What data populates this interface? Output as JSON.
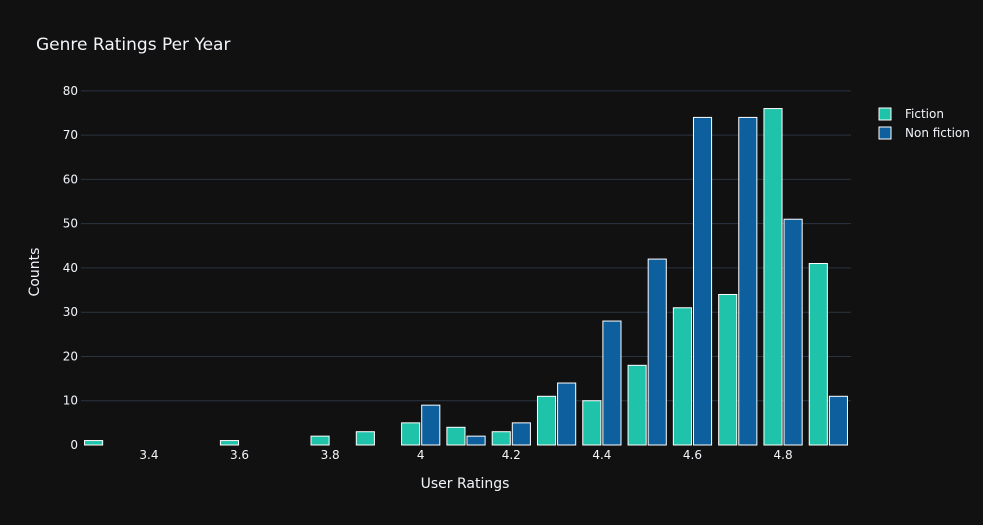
{
  "chart_data": {
    "type": "bar",
    "title": "Genre Ratings Per Year",
    "xlabel": "User Ratings",
    "ylabel": "Counts",
    "x": [
      3.3,
      3.6,
      3.8,
      3.9,
      4.0,
      4.1,
      4.2,
      4.3,
      4.4,
      4.5,
      4.6,
      4.7,
      4.8,
      4.9
    ],
    "series": [
      {
        "name": "Fiction",
        "color": "#1fc3aa",
        "values": [
          1,
          1,
          2,
          3,
          5,
          4,
          3,
          11,
          10,
          18,
          31,
          34,
          76,
          41
        ]
      },
      {
        "name": "Non fiction",
        "color": "#0d5f9e",
        "values": [
          0,
          0,
          0,
          0,
          9,
          2,
          5,
          14,
          28,
          42,
          74,
          74,
          51,
          11
        ]
      }
    ],
    "x_ticks": [
      "3.4",
      "3.6",
      "3.8",
      "4",
      "4.2",
      "4.4",
      "4.6",
      "4.8"
    ],
    "y_ticks": [
      "0",
      "10",
      "20",
      "30",
      "40",
      "50",
      "60",
      "70",
      "80"
    ],
    "xlim": [
      3.25,
      4.95
    ],
    "ylim": [
      0,
      82
    ],
    "grid": true,
    "legend_position": "top-right"
  }
}
